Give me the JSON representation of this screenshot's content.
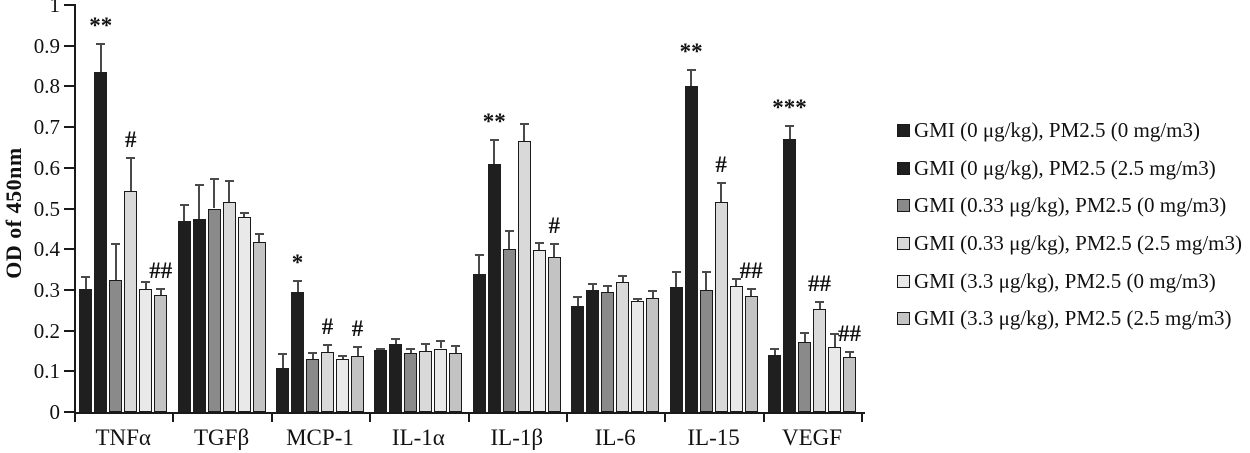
{
  "chart_data": {
    "type": "bar",
    "title": "",
    "xlabel": "",
    "ylabel": "OD of 450nm",
    "ylim": [
      0,
      1
    ],
    "grid": false,
    "legend_position": "right",
    "yticks": [
      "1",
      "0.9",
      "0.8",
      "0.7",
      "0.6",
      "0.5",
      "0.4",
      "0.3",
      "0.2",
      "0.1",
      "0"
    ],
    "ytick_values": [
      1,
      0.9,
      0.8,
      0.7,
      0.6,
      0.5,
      0.4,
      0.3,
      0.2,
      0.1,
      0
    ],
    "categories": [
      "TNFα",
      "TGFβ",
      "MCP-1",
      "IL-1α",
      "IL-1β",
      "IL-6",
      "IL-15",
      "VEGF"
    ],
    "series": [
      {
        "name": "GMI (0 μg/kg), PM2.5 (0 mg/m3)",
        "color": "#1f1f1f",
        "values": [
          0.302,
          0.47,
          0.109,
          0.152,
          0.338,
          0.26,
          0.306,
          0.139
        ],
        "errors": [
          0.03,
          0.039,
          0.033,
          0.004,
          0.047,
          0.023,
          0.038,
          0.017
        ],
        "markers": [
          "",
          "",
          "",
          "",
          "",
          "",
          "",
          ""
        ]
      },
      {
        "name": "GMI (0 μg/kg), PM2.5 (2.5 mg/m3)",
        "color": "#1f1f1f",
        "values": [
          0.835,
          0.474,
          0.295,
          0.166,
          0.609,
          0.3,
          0.8,
          0.67
        ],
        "errors": [
          0.068,
          0.083,
          0.027,
          0.014,
          0.06,
          0.014,
          0.04,
          0.033
        ],
        "markers": [
          "**",
          "",
          "*",
          "",
          "**",
          "",
          "**",
          "***"
        ]
      },
      {
        "name": "GMI (0.33 μg/kg), PM2.5 (0 mg/m3)",
        "color": "#8a8a8a",
        "values": [
          0.325,
          0.5,
          0.13,
          0.144,
          0.4,
          0.295,
          0.3,
          0.173
        ],
        "errors": [
          0.088,
          0.072,
          0.016,
          0.012,
          0.045,
          0.015,
          0.044,
          0.022
        ],
        "markers": [
          "",
          "",
          "",
          "",
          "",
          "",
          "",
          ""
        ]
      },
      {
        "name": "GMI (0.33 μg/kg), PM2.5 (2.5 mg/m3)",
        "color": "#d9d9d9",
        "values": [
          0.542,
          0.515,
          0.147,
          0.15,
          0.666,
          0.319,
          0.516,
          0.252
        ],
        "errors": [
          0.083,
          0.053,
          0.017,
          0.016,
          0.041,
          0.015,
          0.046,
          0.018
        ],
        "markers": [
          "#",
          "",
          "#",
          "",
          "",
          "",
          "#",
          "##"
        ]
      },
      {
        "name": "GMI (3.3 μg/kg), PM2.5 (0 mg/m3)",
        "color": "#e9e9e9",
        "values": [
          0.301,
          0.478,
          0.13,
          0.156,
          0.398,
          0.273,
          0.31,
          0.16
        ],
        "errors": [
          0.019,
          0.01,
          0.007,
          0.019,
          0.017,
          0.004,
          0.018,
          0.031
        ],
        "markers": [
          "",
          "",
          "",
          "",
          "",
          "",
          "",
          ""
        ]
      },
      {
        "name": "GMI (3.3 μg/kg), PM2.5 (2.5 mg/m3)",
        "color": "#c3c3c3",
        "values": [
          0.287,
          0.418,
          0.138,
          0.144,
          0.382,
          0.279,
          0.285,
          0.136
        ],
        "errors": [
          0.014,
          0.019,
          0.021,
          0.018,
          0.03,
          0.019,
          0.018,
          0.012
        ],
        "markers": [
          "##",
          "",
          "#",
          "",
          "#",
          "",
          "##",
          "##"
        ]
      }
    ]
  }
}
